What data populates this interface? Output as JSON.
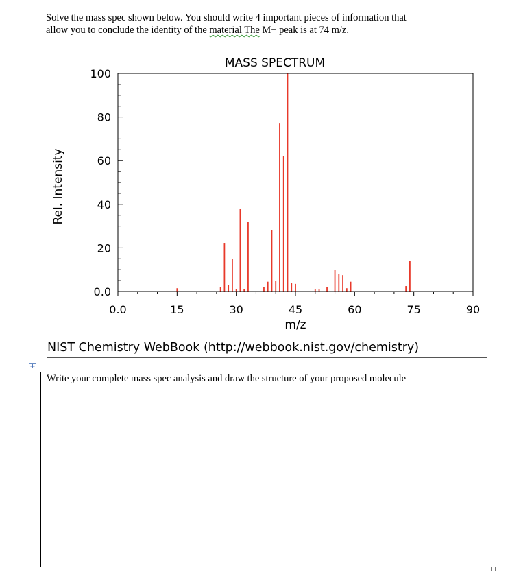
{
  "instructions": {
    "line1": "Solve the mass spec shown below.  You should write 4 important pieces of information that",
    "line2_before": "allow you to conclude the identity of the ",
    "line2_flagged": "material  The",
    "line2_after": " M+ peak is at 74 m/z."
  },
  "chart_data": {
    "type": "bar",
    "title": "MASS SPECTRUM",
    "xlabel": "m/z",
    "ylabel": "Rel. Intensity",
    "xlim": [
      0,
      90
    ],
    "ylim": [
      0,
      100
    ],
    "x_ticks": [
      "0.0",
      "15",
      "30",
      "45",
      "60",
      "75",
      "90"
    ],
    "y_ticks": [
      "0.0",
      "20",
      "40",
      "60",
      "80",
      "100"
    ],
    "bar_color": "#e8392a",
    "peaks": [
      {
        "mz": 15,
        "intensity": 1.5
      },
      {
        "mz": 26,
        "intensity": 2
      },
      {
        "mz": 27,
        "intensity": 22
      },
      {
        "mz": 28,
        "intensity": 3
      },
      {
        "mz": 29,
        "intensity": 15
      },
      {
        "mz": 30,
        "intensity": 1
      },
      {
        "mz": 31,
        "intensity": 38
      },
      {
        "mz": 32,
        "intensity": 1
      },
      {
        "mz": 33,
        "intensity": 32
      },
      {
        "mz": 37,
        "intensity": 2
      },
      {
        "mz": 38,
        "intensity": 4.5
      },
      {
        "mz": 39,
        "intensity": 28
      },
      {
        "mz": 40,
        "intensity": 5
      },
      {
        "mz": 41,
        "intensity": 77
      },
      {
        "mz": 42,
        "intensity": 62
      },
      {
        "mz": 43,
        "intensity": 100
      },
      {
        "mz": 44,
        "intensity": 4
      },
      {
        "mz": 45,
        "intensity": 3.5
      },
      {
        "mz": 50,
        "intensity": 1
      },
      {
        "mz": 51,
        "intensity": 1
      },
      {
        "mz": 53,
        "intensity": 2
      },
      {
        "mz": 55,
        "intensity": 10
      },
      {
        "mz": 56,
        "intensity": 8
      },
      {
        "mz": 57,
        "intensity": 7.5
      },
      {
        "mz": 58,
        "intensity": 1.5
      },
      {
        "mz": 59,
        "intensity": 4.5
      },
      {
        "mz": 73,
        "intensity": 2.5
      },
      {
        "mz": 74,
        "intensity": 14
      }
    ]
  },
  "source": "NIST Chemistry WebBook (http://webbook.nist.gov/chemistry)",
  "answer_box": {
    "label": "Write your complete mass spec analysis and draw the structure of your proposed molecule"
  },
  "table_handle_icon": "+",
  "colors": {
    "handle_border": "#6b8fc7",
    "spell_squiggle": "#3a9a3a"
  }
}
